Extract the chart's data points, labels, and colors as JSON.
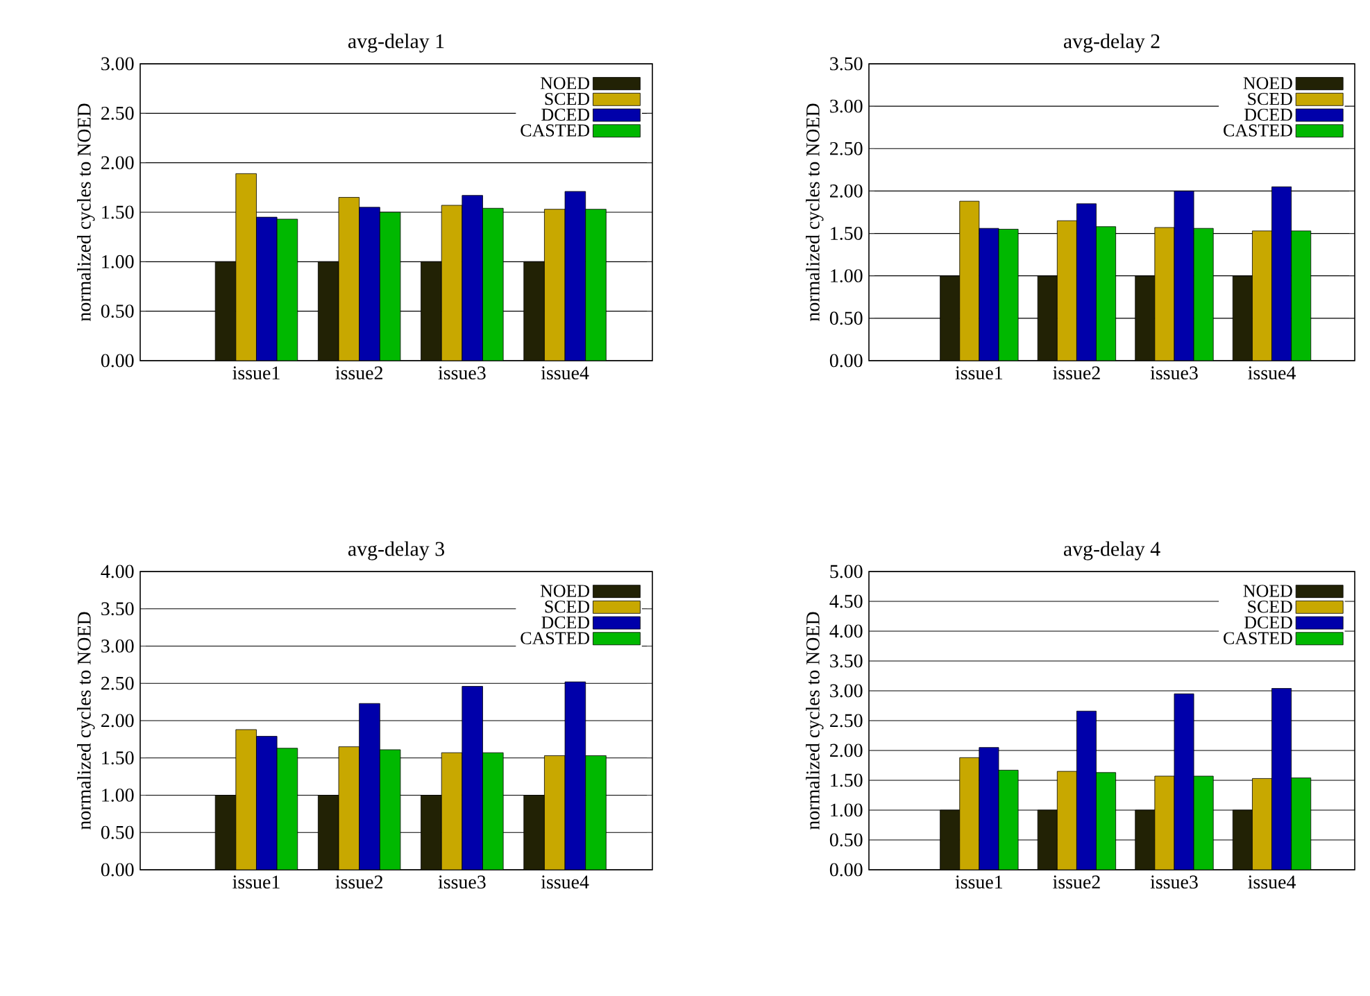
{
  "chart_data": [
    {
      "type": "bar",
      "title": "avg-delay 1",
      "ylabel": "normalized cycles to NOED",
      "categories": [
        "issue1",
        "issue2",
        "issue3",
        "issue4"
      ],
      "series": [
        {
          "name": "NOED",
          "color": "#222205",
          "values": [
            1.0,
            1.0,
            1.0,
            1.0
          ]
        },
        {
          "name": "SCED",
          "color": "#c8a800",
          "values": [
            1.89,
            1.65,
            1.57,
            1.53
          ]
        },
        {
          "name": "DCED",
          "color": "#0000aa",
          "values": [
            1.45,
            1.55,
            1.67,
            1.71
          ]
        },
        {
          "name": "CASTED",
          "color": "#00b800",
          "values": [
            1.43,
            1.5,
            1.54,
            1.53
          ]
        }
      ],
      "ylim": [
        0,
        3
      ],
      "yticks": [
        {
          "value": 0,
          "label": "0.00"
        },
        {
          "value": 0.5,
          "label": "0.50"
        },
        {
          "value": 1,
          "label": "1.00"
        },
        {
          "value": 1.5,
          "label": "1.50"
        },
        {
          "value": 2,
          "label": "2.00"
        },
        {
          "value": 2.5,
          "label": "2.50"
        },
        {
          "value": 3,
          "label": "3.00"
        }
      ],
      "grid": "y",
      "legend": "top right"
    },
    {
      "type": "bar",
      "title": "avg-delay 2",
      "ylabel": "normalized cycles to NOED",
      "categories": [
        "issue1",
        "issue2",
        "issue3",
        "issue4"
      ],
      "series": [
        {
          "name": "NOED",
          "color": "#222205",
          "values": [
            1.0,
            1.0,
            1.0,
            1.0
          ]
        },
        {
          "name": "SCED",
          "color": "#c8a800",
          "values": [
            1.88,
            1.65,
            1.57,
            1.53
          ]
        },
        {
          "name": "DCED",
          "color": "#0000aa",
          "values": [
            1.56,
            1.85,
            2.0,
            2.05
          ]
        },
        {
          "name": "CASTED",
          "color": "#00b800",
          "values": [
            1.55,
            1.58,
            1.56,
            1.53
          ]
        }
      ],
      "ylim": [
        0,
        3.5
      ],
      "yticks": [
        {
          "value": 0,
          "label": "0.00"
        },
        {
          "value": 0.5,
          "label": "0.50"
        },
        {
          "value": 1,
          "label": "1.00"
        },
        {
          "value": 1.5,
          "label": "1.50"
        },
        {
          "value": 2,
          "label": "2.00"
        },
        {
          "value": 2.5,
          "label": "2.50"
        },
        {
          "value": 3,
          "label": "3.00"
        },
        {
          "value": 3.5,
          "label": "3.50"
        }
      ],
      "grid": "y",
      "legend": "top right"
    },
    {
      "type": "bar",
      "title": "avg-delay 3",
      "ylabel": "normalized cycles to NOED",
      "categories": [
        "issue1",
        "issue2",
        "issue3",
        "issue4"
      ],
      "series": [
        {
          "name": "NOED",
          "color": "#222205",
          "values": [
            1.0,
            1.0,
            1.0,
            1.0
          ]
        },
        {
          "name": "SCED",
          "color": "#c8a800",
          "values": [
            1.88,
            1.65,
            1.57,
            1.53
          ]
        },
        {
          "name": "DCED",
          "color": "#0000aa",
          "values": [
            1.79,
            2.23,
            2.46,
            2.52
          ]
        },
        {
          "name": "CASTED",
          "color": "#00b800",
          "values": [
            1.63,
            1.61,
            1.57,
            1.53
          ]
        }
      ],
      "ylim": [
        0,
        4
      ],
      "yticks": [
        {
          "value": 0,
          "label": "0.00"
        },
        {
          "value": 0.5,
          "label": "0.50"
        },
        {
          "value": 1,
          "label": "1.00"
        },
        {
          "value": 1.5,
          "label": "1.50"
        },
        {
          "value": 2,
          "label": "2.00"
        },
        {
          "value": 2.5,
          "label": "2.50"
        },
        {
          "value": 3,
          "label": "3.00"
        },
        {
          "value": 3.5,
          "label": "3.50"
        },
        {
          "value": 4,
          "label": "4.00"
        }
      ],
      "grid": "y",
      "legend": "top right"
    },
    {
      "type": "bar",
      "title": "avg-delay 4",
      "ylabel": "normalized cycles to NOED",
      "categories": [
        "issue1",
        "issue2",
        "issue3",
        "issue4"
      ],
      "series": [
        {
          "name": "NOED",
          "color": "#222205",
          "values": [
            1.0,
            1.0,
            1.0,
            1.0
          ]
        },
        {
          "name": "SCED",
          "color": "#c8a800",
          "values": [
            1.88,
            1.65,
            1.57,
            1.53
          ]
        },
        {
          "name": "DCED",
          "color": "#0000aa",
          "values": [
            2.05,
            2.66,
            2.95,
            3.04
          ]
        },
        {
          "name": "CASTED",
          "color": "#00b800",
          "values": [
            1.67,
            1.63,
            1.57,
            1.54
          ]
        }
      ],
      "ylim": [
        0,
        5
      ],
      "yticks": [
        {
          "value": 0,
          "label": "0.00"
        },
        {
          "value": 0.5,
          "label": "0.50"
        },
        {
          "value": 1,
          "label": "1.00"
        },
        {
          "value": 1.5,
          "label": "1.50"
        },
        {
          "value": 2,
          "label": "2.00"
        },
        {
          "value": 2.5,
          "label": "2.50"
        },
        {
          "value": 3,
          "label": "3.00"
        },
        {
          "value": 3.5,
          "label": "3.50"
        },
        {
          "value": 4,
          "label": "4.00"
        },
        {
          "value": 4.5,
          "label": "4.50"
        },
        {
          "value": 5,
          "label": "5.00"
        }
      ],
      "grid": "y",
      "legend": "top right"
    }
  ]
}
